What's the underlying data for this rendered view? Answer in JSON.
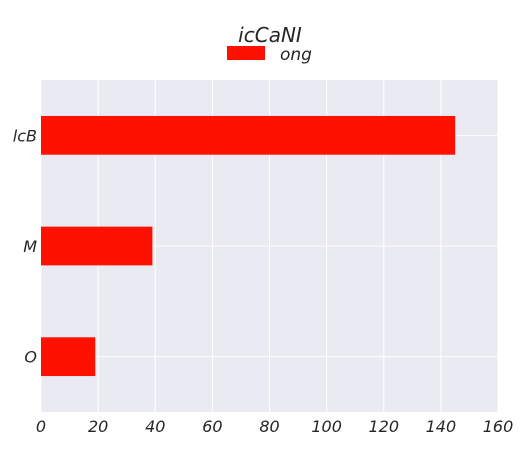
{
  "chart_data": {
    "type": "bar",
    "orientation": "horizontal",
    "title": "icCaNI",
    "xlabel": "",
    "ylabel": "",
    "categories": [
      "O",
      "M",
      "lcB"
    ],
    "series": [
      {
        "name": "ong",
        "values": [
          19,
          39,
          145
        ],
        "color": "#ff1100"
      }
    ],
    "xlim": [
      0,
      160
    ],
    "xticks": [
      0,
      20,
      40,
      60,
      80,
      100,
      120,
      140,
      160
    ],
    "grid": true,
    "legend_position": "top-center",
    "plot_background": "#eaeaf2",
    "grid_color": "#ffffff"
  }
}
